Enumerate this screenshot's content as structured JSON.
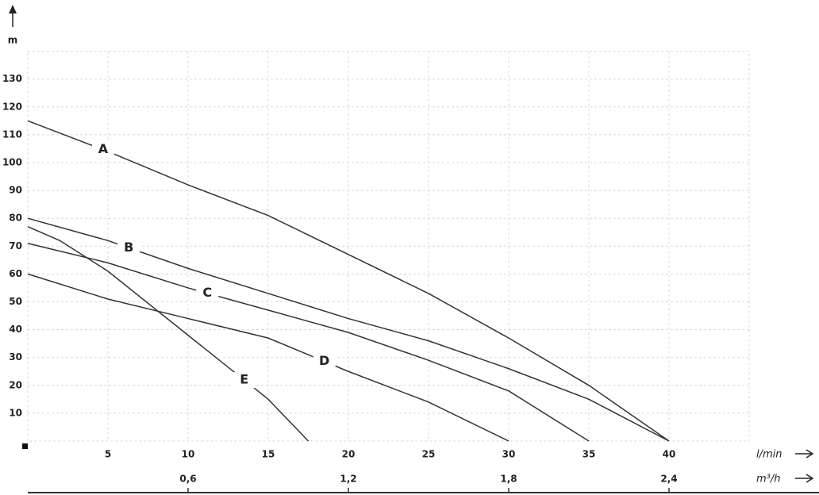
{
  "chart_data": {
    "type": "line",
    "y_label": "m",
    "x_label": "l/min",
    "x2_label": "m³/h",
    "xlim": [
      0,
      45
    ],
    "ylim": [
      0,
      140
    ],
    "xticks": [
      5,
      10,
      15,
      20,
      25,
      30,
      35,
      40
    ],
    "yticks": [
      10,
      20,
      30,
      40,
      50,
      60,
      70,
      80,
      90,
      100,
      110,
      120,
      130
    ],
    "x2lim": [
      0,
      2.7
    ],
    "x2ticks": [
      {
        "value": 0.6,
        "label": "0,6"
      },
      {
        "value": 1.2,
        "label": "1,2"
      },
      {
        "value": 1.8,
        "label": "1,8"
      },
      {
        "value": 2.4,
        "label": "2,4"
      }
    ],
    "grid": true,
    "series": [
      {
        "name": "A",
        "color": "#333333",
        "x": [
          0,
          5,
          10,
          15,
          20,
          25,
          30,
          35,
          40
        ],
        "values": [
          115,
          104,
          92,
          81,
          67,
          53,
          37,
          20,
          0
        ]
      },
      {
        "name": "B",
        "color": "#333333",
        "x": [
          0,
          5,
          10,
          15,
          20,
          25,
          30,
          35,
          40
        ],
        "values": [
          80,
          72,
          62,
          53,
          44,
          36,
          26,
          15,
          0
        ]
      },
      {
        "name": "C",
        "color": "#333333",
        "x": [
          0,
          5,
          10,
          15,
          20,
          25,
          30,
          35
        ],
        "values": [
          71,
          64,
          55,
          47,
          39,
          29,
          18,
          0
        ]
      },
      {
        "name": "D",
        "color": "#333333",
        "x": [
          0,
          5,
          10,
          15,
          20,
          25,
          30
        ],
        "values": [
          60,
          51,
          44,
          37,
          25,
          14,
          0
        ]
      },
      {
        "name": "E",
        "color": "#333333",
        "x": [
          0,
          2,
          5,
          10,
          15,
          17.5
        ],
        "values": [
          77,
          72,
          61,
          38,
          15,
          0
        ]
      }
    ]
  }
}
